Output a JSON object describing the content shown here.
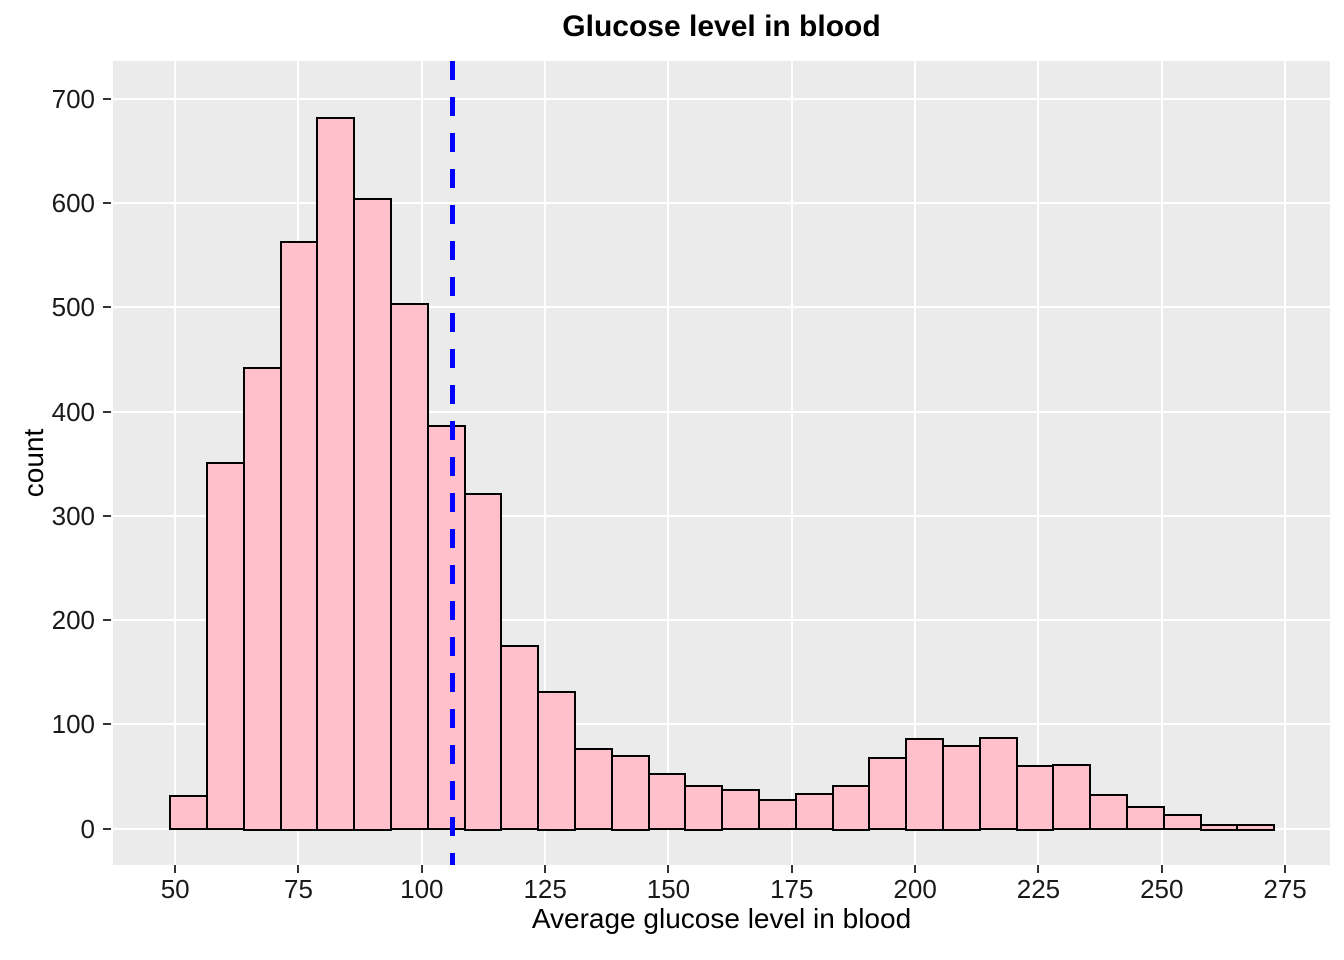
{
  "page": {
    "background": "#FFFFFF"
  },
  "chart_data": {
    "type": "bar",
    "subtype": "histogram",
    "title": "Glucose level in blood",
    "xlabel": "Average glucose level in blood",
    "ylabel": "count",
    "x_ticks": [
      50,
      75,
      100,
      125,
      150,
      175,
      200,
      225,
      250,
      275
    ],
    "y_ticks": [
      0,
      100,
      200,
      300,
      400,
      500,
      600,
      700
    ],
    "xlim": [
      37.4,
      284.1
    ],
    "ylim": [
      -35,
      736.5
    ],
    "bin_edges": [
      48.8,
      56.3,
      63.7,
      71.2,
      78.6,
      86.1,
      93.6,
      101.0,
      108.5,
      115.9,
      123.4,
      130.9,
      138.3,
      145.8,
      153.2,
      160.7,
      168.2,
      175.6,
      183.1,
      190.5,
      198.0,
      205.5,
      213.0,
      220.4,
      227.8,
      235.3,
      242.8,
      250.2,
      257.7,
      265.1,
      272.6
    ],
    "counts": [
      32,
      352,
      443,
      564,
      683,
      605,
      504,
      387,
      322,
      176,
      132,
      77,
      71,
      53,
      42,
      38,
      28,
      34,
      42,
      69,
      87,
      80,
      88,
      61,
      62,
      33,
      22,
      14,
      4,
      4
    ],
    "vline": {
      "x": 106.2,
      "color": "#0000FF",
      "style": "dashed"
    },
    "legend": "none",
    "grid": "major-only",
    "style": {
      "bar_fill": "#FFC0CB",
      "bar_border": "#000000",
      "panel_bg": "#EBEBEB",
      "grid_color": "#FFFFFF",
      "tick_color": "#333333",
      "text_color": "#1A1A1A"
    }
  }
}
